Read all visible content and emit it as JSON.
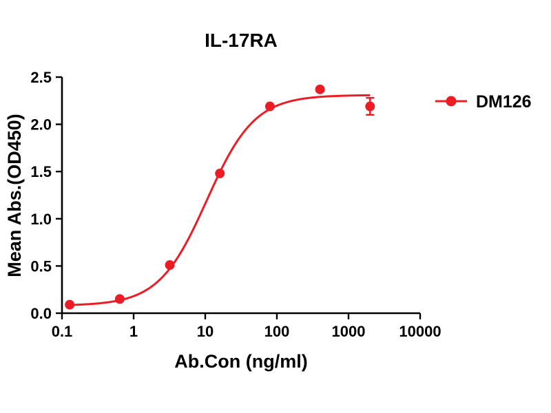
{
  "chart_data": {
    "type": "scatter",
    "title": "IL-17RA",
    "xlabel": "Ab.Con (ng/ml)",
    "ylabel": "Mean Abs.(OD450)",
    "x_scale": "log",
    "xlim": [
      0.1,
      10000
    ],
    "ylim": [
      0.0,
      2.5
    ],
    "x_ticks": [
      0.1,
      1,
      10,
      100,
      1000,
      10000
    ],
    "x_tick_labels": [
      "0.1",
      "1",
      "10",
      "100",
      "1000",
      "10000"
    ],
    "y_ticks": [
      0.0,
      0.5,
      1.0,
      1.5,
      2.0,
      2.5
    ],
    "y_tick_labels": [
      "0.0",
      "0.5",
      "1.0",
      "1.5",
      "2.0",
      "2.5"
    ],
    "grid": false,
    "legend_position": "right",
    "series": [
      {
        "name": "DM126",
        "color": "#ed1c24",
        "marker": "circle",
        "x": [
          0.128,
          0.64,
          3.2,
          16,
          80,
          400,
          2000
        ],
        "y": [
          0.09,
          0.15,
          0.51,
          1.48,
          2.19,
          2.37,
          2.19
        ],
        "y_err": [
          0,
          0,
          0,
          0,
          0,
          0,
          0.09
        ],
        "fit": {
          "model": "4PL",
          "bottom": 0.08,
          "top": 2.31,
          "ec50": 10.5,
          "hill": 1.3
        }
      }
    ]
  }
}
